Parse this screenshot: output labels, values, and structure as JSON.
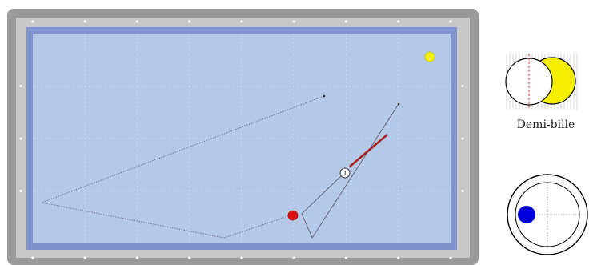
{
  "table": {
    "rail_color": "#9a9a9a",
    "cushion_color": "#7f93cc",
    "cloth_color": "#b4c8e8",
    "diamond_color": "#ffffff"
  },
  "balls": {
    "cue_ball": {
      "label": "1",
      "color": "#ffffff"
    },
    "red_ball": {
      "color": "#dd1111"
    },
    "yellow_ball": {
      "color": "#f5ee00"
    }
  },
  "contact_diagram": {
    "caption": "Demi-bille",
    "object_color": "#f5ee00",
    "cue_color": "#ffffff",
    "aim_line_color": "#dd3333"
  },
  "spin_diagram": {
    "ball_color": "#ffffff",
    "impact_color": "#0000dd"
  },
  "trajectory": {
    "line_color": "#666677",
    "cue_stick_color": "#aa2222"
  }
}
